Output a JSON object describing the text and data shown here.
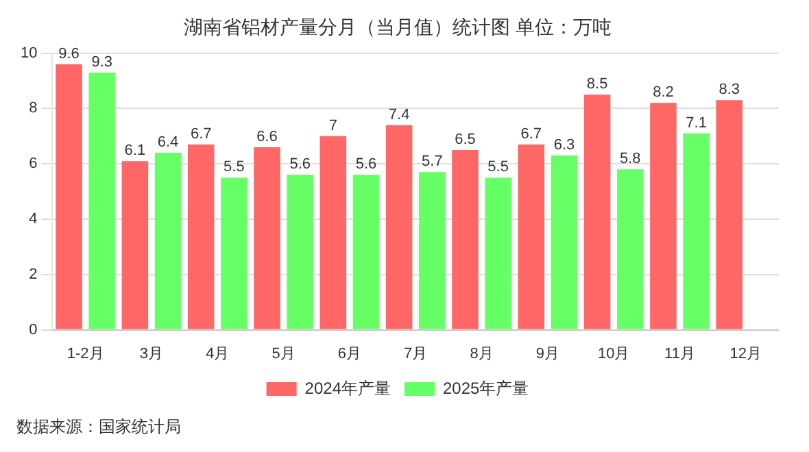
{
  "chart_data": {
    "type": "bar",
    "title": "湖南省铝材产量分月（当月值）统计图 单位：万吨",
    "categories": [
      "1-2月",
      "3月",
      "4月",
      "5月",
      "6月",
      "7月",
      "8月",
      "9月",
      "10月",
      "11月",
      "12月"
    ],
    "series": [
      {
        "name": "2024年产量",
        "color": "#ff6666",
        "values": [
          9.6,
          6.1,
          6.7,
          6.6,
          7,
          7.4,
          6.5,
          6.7,
          8.5,
          8.2,
          8.3
        ]
      },
      {
        "name": "2025年产量",
        "color": "#66ff66",
        "values": [
          9.3,
          6.4,
          5.5,
          5.6,
          5.6,
          5.7,
          5.5,
          6.3,
          5.8,
          7.1,
          null
        ]
      }
    ],
    "ylim": [
      0,
      10
    ],
    "yticks": [
      0,
      2,
      4,
      6,
      8,
      10
    ],
    "grid": "y",
    "legend": "bottom",
    "data_labels": true,
    "annotations": [
      "数据来源：国家统计局"
    ]
  }
}
